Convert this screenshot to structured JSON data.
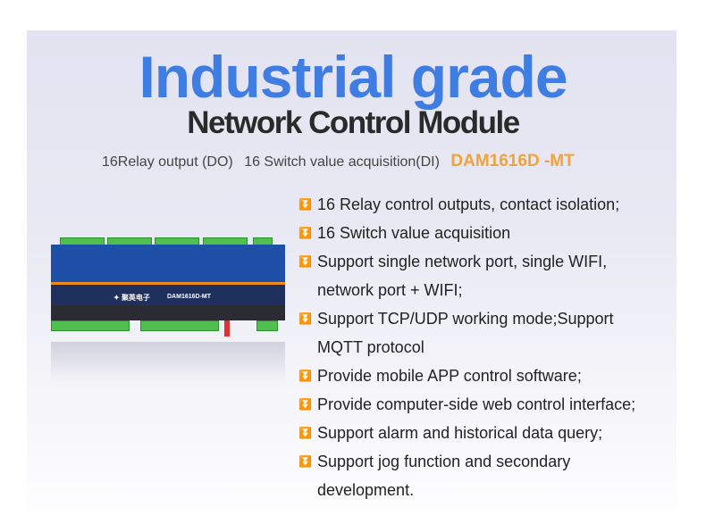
{
  "header": {
    "title": "Industrial grade",
    "subtitle": "Network Control Module"
  },
  "specs": {
    "do": "16Relay output (DO)",
    "di": "16 Switch value acquisition(DI)",
    "model": "DAM1616D -MT"
  },
  "device": {
    "logo_text": "聚英电子",
    "label": "DAM1616D-MT"
  },
  "features": [
    {
      "text": "16 Relay control outputs, contact isolation;"
    },
    {
      "text": "16 Switch value acquisition"
    },
    {
      "text": "Support single network port, single WIFI,",
      "cont": "network port + WIFI;"
    },
    {
      "text": "Support TCP/UDP working mode;Support",
      "cont": "MQTT protocol"
    },
    {
      "text": "Provide mobile APP control software;"
    },
    {
      "text": "Provide computer-side web control interface;"
    },
    {
      "text": "Support alarm and historical data query;"
    },
    {
      "text": "Support jog function and secondary",
      "cont": "development."
    }
  ],
  "colors": {
    "title": "#3f7de2",
    "model": "#eea43a",
    "bullet": "#3a66c8"
  }
}
